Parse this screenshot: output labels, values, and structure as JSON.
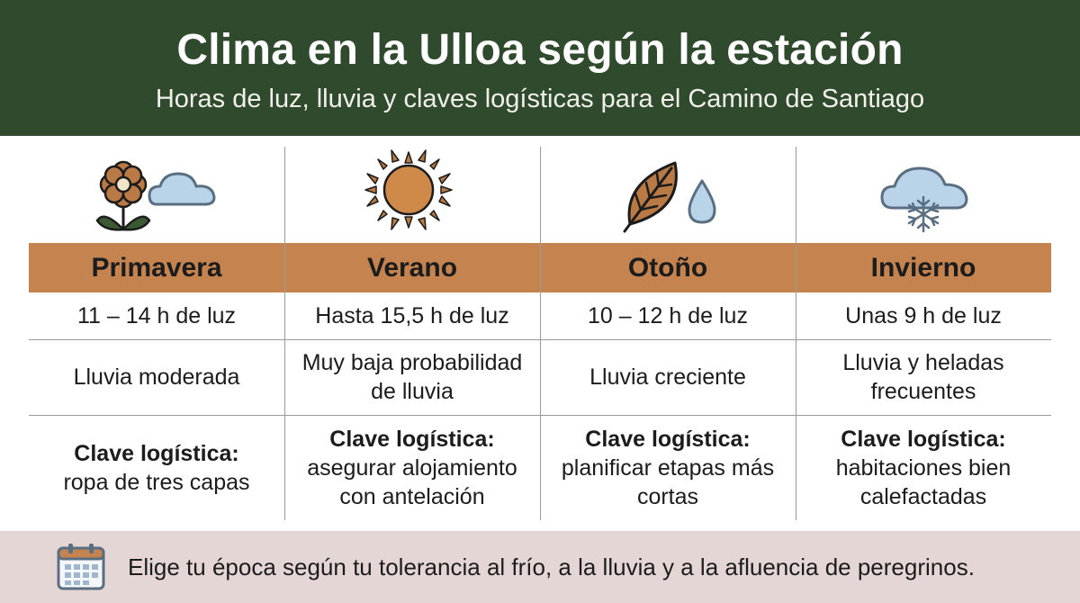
{
  "header": {
    "title": "Clima en la Ulloa según la estación",
    "subtitle": "Horas de luz, lluvia y claves logísticas para el Camino de Santiago"
  },
  "seasons": [
    {
      "name": "Primavera",
      "icons": [
        "flower-icon",
        "cloud-icon"
      ],
      "light": "11 – 14 h de luz",
      "rain": "Lluvia moderada",
      "key_label": "Clave logística:",
      "key_text": "ropa de tres capas"
    },
    {
      "name": "Verano",
      "icons": [
        "sun-icon"
      ],
      "light": "Hasta 15,5 h de luz",
      "rain": "Muy baja probabilidad de lluvia",
      "key_label": "Clave logística:",
      "key_text": "asegurar alojamiento con antelación"
    },
    {
      "name": "Otoño",
      "icons": [
        "leaf-icon",
        "raindrop-icon"
      ],
      "light": "10 – 12 h de luz",
      "rain": "Lluvia creciente",
      "key_label": "Clave logística:",
      "key_text": "planificar etapas más cortas"
    },
    {
      "name": "Invierno",
      "icons": [
        "snow-cloud-icon"
      ],
      "light": "Unas 9 h de luz",
      "rain": "Lluvia y heladas frecuentes",
      "key_label": "Clave logística:",
      "key_text": "habitaciones bien calefactadas"
    }
  ],
  "footer": {
    "icon": "calendar-icon",
    "message": "Elige tu época según tu tolerancia al frío, a la lluvia y a la afluencia de peregrinos."
  },
  "colors": {
    "header_bg": "#2f4a2c",
    "season_band": "#c4834f",
    "footer_bg": "#e4d6d4",
    "icon_brown": "#b97a45",
    "icon_blue": "#b9d3e8",
    "icon_green": "#3b5a34"
  }
}
